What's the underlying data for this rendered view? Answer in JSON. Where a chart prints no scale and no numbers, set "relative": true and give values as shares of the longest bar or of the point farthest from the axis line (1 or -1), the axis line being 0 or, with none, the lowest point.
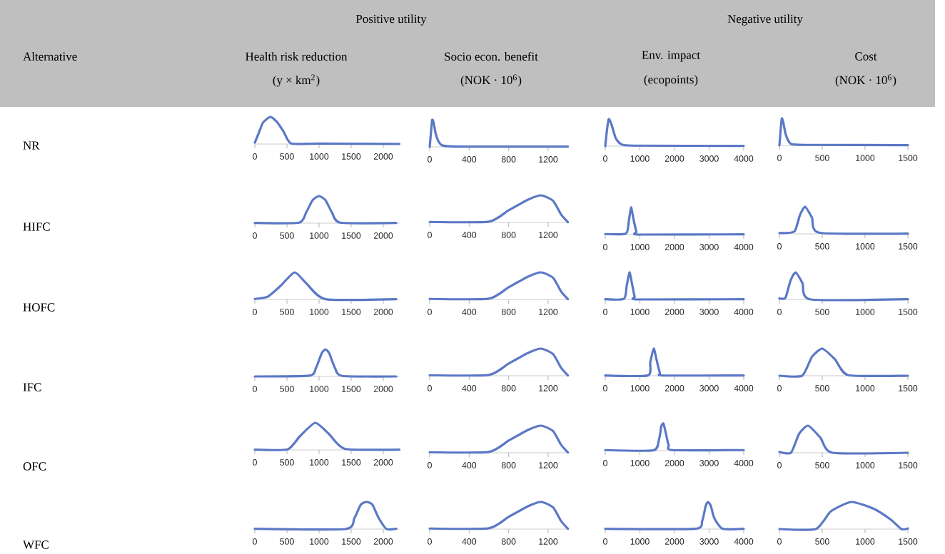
{
  "chart_data": [
    {
      "type": "line",
      "relative": true,
      "title": "Health risk reduction",
      "subtitle": "(y × km$^{2}$)",
      "ylabel": "NR",
      "annotations": [
        "Alternative",
        "Positive utility"
      ],
      "xlim": [
        0,
        2250
      ],
      "xticks": [
        0,
        500,
        1000,
        1500,
        2000
      ],
      "x": [
        0,
        60,
        130,
        245,
        350,
        450,
        565,
        1000,
        2250
      ],
      "series": [
        {
          "color": "#5b78c6",
          "values": [
            0.05,
            0.4,
            0.8,
            1,
            0.8,
            0.45,
            0.02,
            0.015,
            0.005
          ]
        }
      ]
    },
    {
      "type": "line",
      "relative": true,
      "title": "Socio econ. benefit",
      "subtitle": "(NOK · 10$^{6}$)",
      "xlim": [
        0,
        1400
      ],
      "xticks": [
        0,
        400,
        800,
        1200
      ],
      "x": [
        0,
        15,
        25,
        40,
        60,
        90,
        130,
        300,
        1400
      ],
      "series": [
        {
          "color": "#5b78c6",
          "values": [
            0,
            0.6,
            1,
            0.9,
            0.5,
            0.2,
            0.05,
            0.01,
            0.01
          ]
        }
      ]
    },
    {
      "type": "line",
      "relative": true,
      "title": "Env. impact",
      "subtitle": "(ecopoints)",
      "annotations": [
        "Negative utility"
      ],
      "xlim": [
        0,
        4000
      ],
      "xticks": [
        0,
        1000,
        2000,
        3000,
        4000
      ],
      "x": [
        0,
        50,
        100,
        180,
        300,
        450,
        800,
        4000
      ],
      "series": [
        {
          "color": "#5b78c6",
          "values": [
            0,
            0.6,
            1,
            0.8,
            0.3,
            0.08,
            0.02,
            0.01
          ]
        }
      ]
    },
    {
      "type": "line",
      "relative": true,
      "title": "Cost",
      "subtitle": "(NOK · 10$^{6}$)",
      "xlim": [
        0,
        1500
      ],
      "xticks": [
        0,
        500,
        1000,
        1500
      ],
      "x": [
        0,
        15,
        28,
        45,
        70,
        100,
        140,
        300,
        1500
      ],
      "series": [
        {
          "color": "#5b78c6",
          "values": [
            0,
            0.6,
            1,
            0.85,
            0.45,
            0.2,
            0.05,
            0.02,
            0.01
          ]
        }
      ]
    },
    {
      "type": "line",
      "relative": true,
      "ylabel": "HIFC",
      "xlim": [
        0,
        2250
      ],
      "xticks": [
        0,
        500,
        1000,
        1500,
        2000
      ],
      "x": [
        0,
        690,
        800,
        900,
        1000,
        1100,
        1200,
        1330,
        2200
      ],
      "series": [
        {
          "color": "#5b78c6",
          "values": [
            0.01,
            0.02,
            0.4,
            0.85,
            1,
            0.85,
            0.4,
            0.02,
            0.01
          ]
        }
      ]
    },
    {
      "type": "line",
      "relative": true,
      "xlim": [
        0,
        1400
      ],
      "xticks": [
        0,
        400,
        800,
        1200
      ],
      "x": [
        0,
        600,
        800,
        1000,
        1130,
        1250,
        1330,
        1400
      ],
      "series": [
        {
          "color": "#5b78c6",
          "values": [
            0.02,
            0.03,
            0.45,
            0.85,
            1,
            0.8,
            0.3,
            0.01
          ]
        }
      ]
    },
    {
      "type": "line",
      "relative": true,
      "xlim": [
        0,
        4000
      ],
      "xticks": [
        0,
        1000,
        2000,
        3000,
        4000
      ],
      "x": [
        0,
        600,
        680,
        745,
        810,
        900,
        990,
        4000
      ],
      "series": [
        {
          "color": "#5b78c6",
          "values": [
            0.02,
            0.04,
            0.5,
            1,
            0.6,
            0.1,
            0,
            0.01
          ]
        }
      ]
    },
    {
      "type": "line",
      "relative": true,
      "xlim": [
        0,
        1500
      ],
      "xticks": [
        0,
        500,
        1000,
        1500
      ],
      "x": [
        0,
        175,
        240,
        300,
        380,
        470,
        1500
      ],
      "series": [
        {
          "color": "#5b78c6",
          "values": [
            0.03,
            0.09,
            0.7,
            1,
            0.6,
            0.04,
            0.01
          ]
        }
      ]
    },
    {
      "type": "line",
      "relative": true,
      "ylabel": "HOFC",
      "xlim": [
        0,
        2250
      ],
      "xticks": [
        0,
        500,
        1000,
        1500,
        2000
      ],
      "x": [
        0,
        200,
        400,
        620,
        800,
        1100,
        2200
      ],
      "series": [
        {
          "color": "#5b78c6",
          "values": [
            0.02,
            0.1,
            0.5,
            1,
            0.6,
            0.01,
            0.01
          ]
        }
      ]
    },
    {
      "type": "line",
      "relative": true,
      "xlim": [
        0,
        1400
      ],
      "xticks": [
        0,
        400,
        800,
        1200
      ],
      "x": [
        0,
        600,
        800,
        1000,
        1130,
        1250,
        1330,
        1400
      ],
      "series": [
        {
          "color": "#5b78c6",
          "values": [
            0.02,
            0.03,
            0.45,
            0.85,
            1,
            0.8,
            0.3,
            0.01
          ]
        }
      ]
    },
    {
      "type": "line",
      "relative": true,
      "xlim": [
        0,
        4000
      ],
      "xticks": [
        0,
        1000,
        2000,
        3000,
        4000
      ],
      "x": [
        0,
        540,
        620,
        700,
        770,
        850,
        950,
        4000
      ],
      "series": [
        {
          "color": "#5b78c6",
          "values": [
            0.01,
            0.02,
            0.5,
            1,
            0.6,
            0.1,
            0,
            0.01
          ]
        }
      ]
    },
    {
      "type": "line",
      "relative": true,
      "xlim": [
        0,
        1500
      ],
      "xticks": [
        0,
        500,
        1000,
        1500
      ],
      "x": [
        0,
        70,
        130,
        190,
        270,
        365,
        1500
      ],
      "series": [
        {
          "color": "#5b78c6",
          "values": [
            0.04,
            0.06,
            0.7,
            1,
            0.6,
            0,
            0.01
          ]
        }
      ]
    },
    {
      "type": "line",
      "relative": true,
      "ylabel": "IFC",
      "xlim": [
        0,
        2250
      ],
      "xticks": [
        0,
        500,
        1000,
        1500,
        2000
      ],
      "x": [
        0,
        850,
        950,
        1040,
        1100,
        1160,
        1250,
        1360,
        2200
      ],
      "series": [
        {
          "color": "#5b78c6",
          "values": [
            0,
            0.03,
            0.3,
            0.85,
            1,
            0.85,
            0.3,
            0.02,
            0
          ]
        }
      ]
    },
    {
      "type": "line",
      "relative": true,
      "xlim": [
        0,
        1400
      ],
      "xticks": [
        0,
        400,
        800,
        1200
      ],
      "x": [
        0,
        600,
        800,
        1000,
        1130,
        1250,
        1330,
        1400
      ],
      "series": [
        {
          "color": "#5b78c6",
          "values": [
            0.02,
            0.03,
            0.45,
            0.85,
            1,
            0.8,
            0.3,
            0.01
          ]
        }
      ]
    },
    {
      "type": "line",
      "relative": true,
      "xlim": [
        0,
        4000
      ],
      "xticks": [
        0,
        1000,
        2000,
        3000,
        4000
      ],
      "x": [
        0,
        1230,
        1300,
        1400,
        1480,
        1580,
        1680,
        4000
      ],
      "series": [
        {
          "color": "#5b78c6",
          "values": [
            0.01,
            0.01,
            0.5,
            1,
            0.6,
            0.1,
            0.01,
            0.01
          ]
        }
      ]
    },
    {
      "type": "line",
      "relative": true,
      "xlim": [
        0,
        1500
      ],
      "xticks": [
        0,
        500,
        1000,
        1500
      ],
      "x": [
        0,
        265,
        380,
        500,
        650,
        805,
        1500
      ],
      "series": [
        {
          "color": "#5b78c6",
          "values": [
            0,
            0,
            0.7,
            1,
            0.6,
            0.02,
            0
          ]
        }
      ]
    },
    {
      "type": "line",
      "relative": true,
      "ylabel": "OFC",
      "xlim": [
        0,
        2250
      ],
      "xticks": [
        0,
        500,
        1000,
        1500,
        2000
      ],
      "x": [
        0,
        510,
        700,
        940,
        1150,
        1400,
        2250
      ],
      "series": [
        {
          "color": "#5b78c6",
          "values": [
            0.01,
            0.02,
            0.5,
            1,
            0.6,
            0.04,
            0.01
          ]
        }
      ]
    },
    {
      "type": "line",
      "relative": true,
      "xlim": [
        0,
        1400
      ],
      "xticks": [
        0,
        400,
        800,
        1200
      ],
      "x": [
        0,
        600,
        800,
        1000,
        1130,
        1250,
        1330,
        1400
      ],
      "series": [
        {
          "color": "#5b78c6",
          "values": [
            0.02,
            0.03,
            0.45,
            0.85,
            1,
            0.8,
            0.3,
            0.01
          ]
        }
      ]
    },
    {
      "type": "line",
      "relative": true,
      "xlim": [
        0,
        4000
      ],
      "xticks": [
        0,
        1000,
        2000,
        3000,
        4000
      ],
      "x": [
        0,
        1390,
        1550,
        1620,
        1680,
        1740,
        1830,
        1940,
        4000
      ],
      "series": [
        {
          "color": "#5b78c6",
          "values": [
            0.02,
            0.01,
            0.4,
            0.9,
            1,
            0.7,
            0.2,
            0.02,
            0.02
          ]
        }
      ]
    },
    {
      "type": "line",
      "relative": true,
      "xlim": [
        0,
        1500
      ],
      "xticks": [
        0,
        500,
        1000,
        1500
      ],
      "x": [
        0,
        135,
        230,
        335,
        480,
        620,
        1500
      ],
      "series": [
        {
          "color": "#5b78c6",
          "values": [
            0.03,
            0,
            0.7,
            1,
            0.55,
            0,
            0
          ]
        }
      ]
    },
    {
      "type": "line",
      "relative": true,
      "ylabel": "WFC",
      "xlim": [
        0,
        2250
      ],
      "xticks": [
        0,
        500,
        1000,
        1500,
        2000
      ],
      "x": [
        0,
        1410,
        1550,
        1650,
        1740,
        1830,
        1930,
        2050,
        2200
      ],
      "series": [
        {
          "color": "#5b78c6",
          "values": [
            0.01,
            0,
            0.4,
            0.9,
            1,
            0.9,
            0.4,
            0,
            0.01
          ]
        }
      ]
    },
    {
      "type": "line",
      "relative": true,
      "xlim": [
        0,
        1400
      ],
      "xticks": [
        0,
        400,
        800,
        1200
      ],
      "x": [
        0,
        600,
        800,
        1000,
        1130,
        1250,
        1330,
        1400
      ],
      "series": [
        {
          "color": "#5b78c6",
          "values": [
            0.02,
            0.03,
            0.45,
            0.85,
            1,
            0.8,
            0.3,
            0.01
          ]
        }
      ]
    },
    {
      "type": "line",
      "relative": true,
      "xlim": [
        0,
        4000
      ],
      "xticks": [
        0,
        1000,
        2000,
        3000,
        4000
      ],
      "x": [
        0,
        2590,
        2800,
        2900,
        2970,
        3050,
        3150,
        3390,
        4000
      ],
      "series": [
        {
          "color": "#5b78c6",
          "values": [
            0.01,
            0.01,
            0.3,
            0.85,
            1,
            0.85,
            0.4,
            0.01,
            0.01
          ]
        }
      ]
    },
    {
      "type": "line",
      "relative": true,
      "xlim": [
        0,
        1500
      ],
      "xticks": [
        0,
        500,
        1000,
        1500
      ],
      "x": [
        0,
        425,
        600,
        840,
        1100,
        1300,
        1425,
        1500
      ],
      "series": [
        {
          "color": "#5b78c6",
          "values": [
            0,
            0,
            0.65,
            1,
            0.75,
            0.35,
            0,
            0.02
          ]
        }
      ]
    }
  ]
}
